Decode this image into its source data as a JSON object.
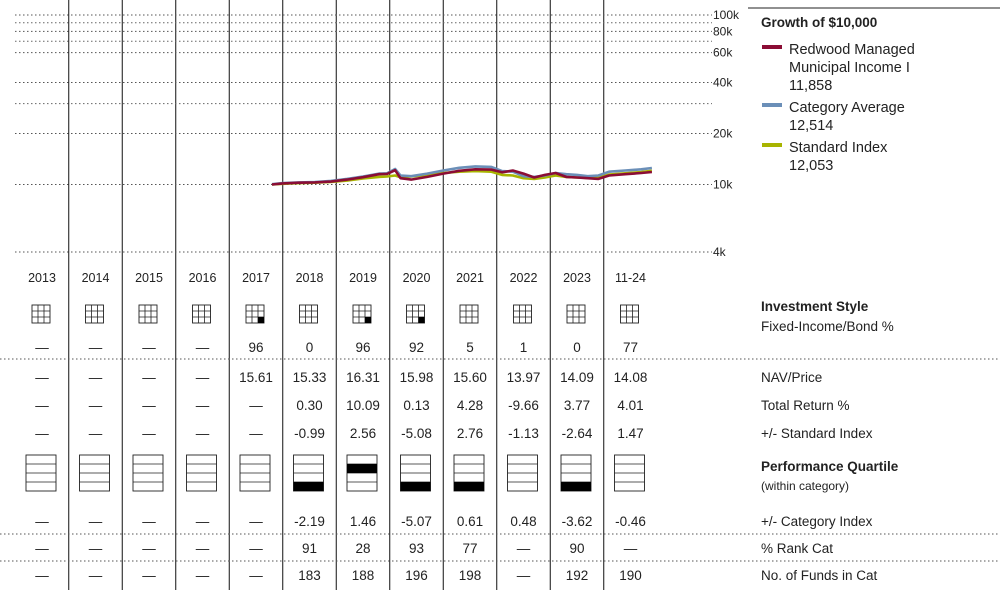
{
  "chart_data": {
    "type": "line",
    "title": "Growth of  $10,000",
    "y_scale": "log",
    "ylim": [
      4000,
      100000
    ],
    "y_ticks": [
      {
        "value": 100000,
        "label": "100k"
      },
      {
        "value": 80000,
        "label": "80k"
      },
      {
        "value": 60000,
        "label": "60k"
      },
      {
        "value": 40000,
        "label": "40k"
      },
      {
        "value": 20000,
        "label": "20k"
      },
      {
        "value": 10000,
        "label": "10k"
      },
      {
        "value": 4000,
        "label": "4k"
      }
    ],
    "legend_position": "right",
    "x_start": 2017.8,
    "x_end": 2024.9,
    "series": [
      {
        "name": "Redwood Managed Municipal Income I",
        "value_label": "11,858",
        "color": "#8b0d35",
        "x": [
          2017.8,
          2018.0,
          2018.3,
          2018.6,
          2018.9,
          2019.2,
          2019.5,
          2019.8,
          2019.95,
          2020.1,
          2020.2,
          2020.4,
          2020.7,
          2021.0,
          2021.3,
          2021.6,
          2021.9,
          2022.1,
          2022.3,
          2022.5,
          2022.7,
          2022.9,
          2023.1,
          2023.3,
          2023.5,
          2023.7,
          2023.9,
          2024.1,
          2024.4,
          2024.7,
          2024.9
        ],
        "y": [
          10000,
          10150,
          10250,
          10300,
          10400,
          10700,
          11050,
          11500,
          11550,
          12150,
          10900,
          10700,
          11100,
          11600,
          12050,
          12300,
          12250,
          11800,
          12100,
          11600,
          11000,
          11400,
          11700,
          11100,
          11000,
          10900,
          10800,
          11300,
          11500,
          11700,
          11858
        ]
      },
      {
        "name": "Category Average",
        "value_label": "12,514",
        "color": "#6b8fb8",
        "x": [
          2017.8,
          2018.0,
          2018.3,
          2018.6,
          2018.9,
          2019.2,
          2019.5,
          2019.8,
          2019.95,
          2020.1,
          2020.2,
          2020.4,
          2020.7,
          2021.0,
          2021.3,
          2021.6,
          2021.9,
          2022.1,
          2022.3,
          2022.5,
          2022.7,
          2022.9,
          2023.1,
          2023.3,
          2023.5,
          2023.7,
          2023.9,
          2024.1,
          2024.4,
          2024.7,
          2024.9
        ],
        "y": [
          10050,
          10200,
          10300,
          10350,
          10500,
          10800,
          11150,
          11600,
          11650,
          12350,
          11300,
          11200,
          11600,
          12100,
          12550,
          12800,
          12700,
          12000,
          11900,
          11200,
          11100,
          11300,
          11700,
          11500,
          11400,
          11200,
          11300,
          11900,
          12100,
          12300,
          12514
        ]
      },
      {
        "name": "Standard Index",
        "value_label": "12,053",
        "color": "#a8b400",
        "x": [
          2017.8,
          2018.0,
          2018.3,
          2018.6,
          2018.9,
          2019.2,
          2019.5,
          2019.8,
          2019.95,
          2020.1,
          2020.2,
          2020.4,
          2020.7,
          2021.0,
          2021.3,
          2021.6,
          2021.9,
          2022.1,
          2022.3,
          2022.5,
          2022.7,
          2022.9,
          2023.1,
          2023.3,
          2023.5,
          2023.7,
          2023.9,
          2024.1,
          2024.4,
          2024.7,
          2024.9
        ],
        "y": [
          10000,
          10100,
          10200,
          10250,
          10350,
          10550,
          10850,
          11100,
          11150,
          11300,
          11050,
          11150,
          11400,
          11700,
          11900,
          12000,
          11900,
          11400,
          11300,
          10900,
          10800,
          11000,
          11300,
          11100,
          11000,
          10950,
          11000,
          11450,
          11650,
          11850,
          12053
        ]
      }
    ]
  },
  "years": [
    "2013",
    "2014",
    "2015",
    "2016",
    "2017",
    "2018",
    "2019",
    "2020",
    "2021",
    "2022",
    "2023",
    "11-24"
  ],
  "investment_style": {
    "label": "Investment Style",
    "sublabel": "Fixed-Income/Bond %",
    "style_box": [
      null,
      null,
      null,
      null,
      "br",
      "none",
      "br",
      "br",
      "none",
      "none",
      "none",
      "none"
    ],
    "values": [
      "—",
      "—",
      "—",
      "—",
      "96",
      "0",
      "96",
      "92",
      "5",
      "1",
      "0",
      "77"
    ]
  },
  "table_rows": [
    {
      "label": "NAV/Price",
      "values": [
        "—",
        "—",
        "—",
        "—",
        "15.61",
        "15.33",
        "16.31",
        "15.98",
        "15.60",
        "13.97",
        "14.09",
        "14.08"
      ]
    },
    {
      "label": "Total Return %",
      "values": [
        "—",
        "—",
        "—",
        "—",
        "—",
        "0.30",
        "10.09",
        "0.13",
        "4.28",
        "-9.66",
        "3.77",
        "4.01"
      ]
    },
    {
      "label": "+/- Standard Index",
      "values": [
        "—",
        "—",
        "—",
        "—",
        "—",
        "-0.99",
        "2.56",
        "-5.08",
        "2.76",
        "-1.13",
        "-2.64",
        "1.47"
      ]
    }
  ],
  "performance_quartile": {
    "label": "Performance Quartile",
    "sublabel": "(within category)",
    "quartiles": [
      0,
      0,
      0,
      0,
      0,
      4,
      2,
      4,
      4,
      0,
      4,
      0
    ]
  },
  "bottom_rows": [
    {
      "label": "+/- Category Index",
      "values": [
        "—",
        "—",
        "—",
        "—",
        "—",
        "-2.19",
        "1.46",
        "-5.07",
        "0.61",
        "0.48",
        "-3.62",
        "-0.46"
      ]
    },
    {
      "label": "% Rank Cat",
      "values": [
        "—",
        "—",
        "—",
        "—",
        "—",
        "91",
        "28",
        "93",
        "77",
        "—",
        "90",
        "—"
      ]
    },
    {
      "label": "No. of Funds in Cat",
      "values": [
        "—",
        "—",
        "—",
        "—",
        "—",
        "183",
        "188",
        "196",
        "198",
        "—",
        "192",
        "190"
      ]
    }
  ]
}
